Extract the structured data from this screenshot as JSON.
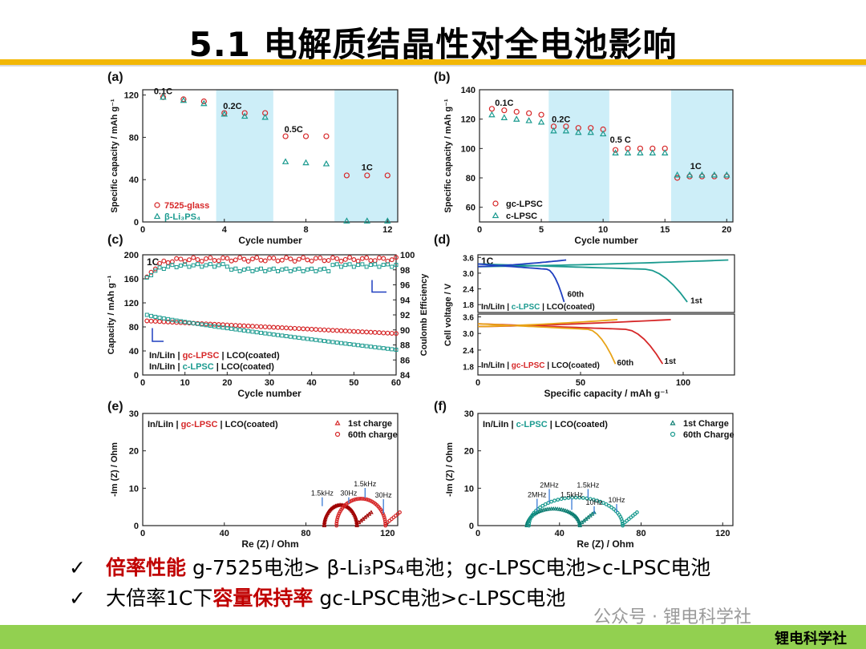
{
  "title": "5.1 电解质结晶性对全电池影响",
  "bullets": [
    {
      "check": "✓",
      "highlight": "倍率性能",
      "rest": " g-7525电池> β-Li₃PS₄电池；gc-LPSC电池>c-LPSC电池"
    },
    {
      "check": "✓",
      "prefix": "大倍率1C下",
      "highlight": "容量保持率",
      "rest": " gc-LPSC电池>c-LPSC电池"
    }
  ],
  "watermark": "公众号 · 锂电科学社",
  "footer_brand": "锂电科学社",
  "colors": {
    "accent_bar": "#f2b705",
    "footer": "#92d050",
    "red": "#d62728",
    "teal": "#1a9a8f",
    "blue": "#1f3fbf",
    "panel_bg": "#cdeef8"
  },
  "chart_data": [
    {
      "panel": "(a)",
      "type": "scatter",
      "xlabel": "Cycle number",
      "ylabel": "Specific capacity / mAh g⁻¹",
      "xlim": [
        0,
        12.5
      ],
      "ylim": [
        0,
        125
      ],
      "xticks": [
        0,
        4,
        8,
        12
      ],
      "yticks": [
        0,
        40,
        80,
        120
      ],
      "rate_labels": [
        {
          "text": "0.1C",
          "x": 1.0,
          "y": 121
        },
        {
          "text": "0.2C",
          "x": 4.4,
          "y": 107
        },
        {
          "text": "0.5C",
          "x": 7.4,
          "y": 85
        },
        {
          "text": "1C",
          "x": 11.0,
          "y": 49
        }
      ],
      "shaded_regions": [
        [
          3.6,
          6.4
        ],
        [
          9.4,
          12.5
        ]
      ],
      "series": [
        {
          "name": "7525-glass",
          "marker": "circle",
          "x": [
            1,
            2,
            3,
            4,
            5,
            6,
            7,
            8,
            9,
            10,
            11,
            12
          ],
          "y": [
            118,
            116,
            114,
            103,
            103,
            103,
            81,
            81,
            81,
            44,
            44,
            44
          ]
        },
        {
          "name": "β-Li₃PS₄",
          "marker": "triangle",
          "x": [
            1,
            2,
            3,
            4,
            5,
            6,
            7,
            8,
            9,
            10,
            11,
            12
          ],
          "y": [
            118,
            115,
            112,
            102,
            100,
            99,
            57,
            56,
            55,
            1,
            1,
            1
          ]
        }
      ]
    },
    {
      "panel": "(b)",
      "type": "scatter",
      "xlabel": "Cycle number",
      "ylabel": "Specific capacity / mAh g⁻¹",
      "xlim": [
        0,
        20.5
      ],
      "ylim": [
        50,
        140
      ],
      "xticks": [
        0,
        5,
        10,
        15,
        20
      ],
      "yticks": [
        60,
        80,
        100,
        120,
        140
      ],
      "rate_labels": [
        {
          "text": "0.1C",
          "x": 2.0,
          "y": 129
        },
        {
          "text": "0.2C",
          "x": 6.6,
          "y": 118
        },
        {
          "text": "0.5 C",
          "x": 11.4,
          "y": 104
        },
        {
          "text": "1C",
          "x": 17.5,
          "y": 86
        }
      ],
      "shaded_regions": [
        [
          5.6,
          10.5
        ],
        [
          15.5,
          20.5
        ]
      ],
      "series": [
        {
          "name": "gc-LPSC",
          "marker": "circle",
          "x": [
            1,
            2,
            3,
            4,
            5,
            6,
            7,
            8,
            9,
            10,
            11,
            12,
            13,
            14,
            15,
            16,
            17,
            18,
            19,
            20
          ],
          "y": [
            127,
            126,
            125,
            124,
            123,
            115,
            115,
            114,
            114,
            113,
            99,
            100,
            100,
            100,
            100,
            80,
            81,
            81,
            81,
            81
          ]
        },
        {
          "name": "c-LPSC",
          "marker": "triangle",
          "x": [
            1,
            2,
            3,
            4,
            5,
            6,
            7,
            8,
            9,
            10,
            11,
            12,
            13,
            14,
            15,
            16,
            17,
            18,
            19,
            20
          ],
          "y": [
            123,
            121,
            120,
            119,
            118,
            112,
            112,
            111,
            111,
            110,
            97,
            97,
            97,
            97,
            97,
            82,
            82,
            82,
            82,
            82
          ]
        }
      ]
    },
    {
      "panel": "(c)",
      "type": "scatter",
      "xlabel": "Cycle number",
      "ylabel": "Capacity / mAh g⁻¹",
      "ylabel_right": "Coulomb Efficiency",
      "xlim": [
        0,
        60
      ],
      "ylim": [
        0,
        200
      ],
      "ylim_right": [
        84,
        100
      ],
      "xticks": [
        0,
        10,
        20,
        30,
        40,
        50,
        60
      ],
      "yticks": [
        0,
        40,
        80,
        120,
        160,
        200
      ],
      "yticks_right": [
        84,
        86,
        88,
        90,
        92,
        94,
        96,
        98,
        100
      ],
      "label_1c": "1C",
      "legend": [
        {
          "prefix": "In/LiIn | ",
          "mid": "gc-LPSC",
          "suffix": " | LCO(coated)"
        },
        {
          "prefix": "In/LiIn | ",
          "mid": "c-LPSC",
          "suffix": " | LCO(coated)"
        }
      ],
      "series": [
        {
          "name": "gc-LPSC capacity",
          "axis": "left",
          "start": 90,
          "end": 69
        },
        {
          "name": "c-LPSC capacity",
          "axis": "left",
          "start": 100,
          "end": 42
        },
        {
          "name": "gc-LPSC CE",
          "axis": "right",
          "plateau": 99.4
        },
        {
          "name": "c-LPSC CE",
          "axis": "right",
          "plateau": 98.6
        }
      ]
    },
    {
      "panel": "(d)",
      "type": "line",
      "xlabel": "Specific capacity / mAh g⁻¹",
      "ylabel": "Cell voltage / V",
      "xlim": [
        0,
        125
      ],
      "ylim": [
        1.5,
        3.7
      ],
      "xticks": [
        0,
        50,
        100
      ],
      "yticks": [
        1.8,
        2.4,
        3.0,
        3.6
      ],
      "top": {
        "legend": {
          "prefix": "In/LiIn | ",
          "mid": "c-LPSC",
          "suffix": " | LCO(coated)"
        },
        "label_1c": "1C",
        "curves": [
          {
            "name": "1st",
            "charge_max": 122,
            "discharge_max": 102
          },
          {
            "name": "60th",
            "charge_max": 43,
            "discharge_max": 42
          }
        ]
      },
      "bottom": {
        "legend": {
          "prefix": "In/LiIn | ",
          "mid": "gc-LPSC",
          "suffix": " | LCO(coated)"
        },
        "curves": [
          {
            "name": "1st",
            "charge_max": 94,
            "discharge_max": 90
          },
          {
            "name": "60th",
            "charge_max": 68,
            "discharge_max": 67
          }
        ]
      }
    },
    {
      "panel": "(e)",
      "type": "scatter",
      "xlabel": "Re (Z) / Ohm",
      "ylabel": "-Im (Z) / Ohm",
      "xlim": [
        0,
        125
      ],
      "ylim": [
        0,
        30
      ],
      "xticks": [
        0,
        40,
        80,
        120
      ],
      "yticks": [
        0,
        10,
        20,
        30
      ],
      "legend_title": {
        "prefix": "In/LiIn | ",
        "mid": "gc-LPSC",
        "suffix": " | LCO(coated)"
      },
      "series": [
        {
          "name": "1st charge",
          "marker": "triangle"
        },
        {
          "name": "60th charge",
          "marker": "circle"
        }
      ],
      "annotations": [
        "1.5kHz",
        "30Hz",
        "1.5kHz",
        "30Hz"
      ]
    },
    {
      "panel": "(f)",
      "type": "scatter",
      "xlabel": "Re (Z) / Ohm",
      "ylabel": "-Im (Z) / Ohm",
      "xlim": [
        0,
        125
      ],
      "ylim": [
        0,
        30
      ],
      "xticks": [
        0,
        40,
        80,
        120
      ],
      "yticks": [
        0,
        10,
        20,
        30
      ],
      "legend_title": {
        "prefix": "In/LiIn | ",
        "mid": "c-LPSC",
        "suffix": " | LCO(coated)"
      },
      "series": [
        {
          "name": "1st Charge",
          "marker": "triangle"
        },
        {
          "name": "60th Charge",
          "marker": "circle"
        }
      ],
      "annotations": [
        "2MHz",
        "2MHz",
        "1.5kHz",
        "1.5kHz",
        "10Hz",
        "10Hz"
      ]
    }
  ]
}
